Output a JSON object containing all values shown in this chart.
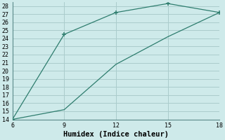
{
  "title": "",
  "xlabel": "Humidex (Indice chaleur)",
  "background_color": "#ceeaea",
  "grid_color": "#aacccc",
  "line_color": "#2e7d6e",
  "marker_color": "#2e7d6e",
  "x_series1": [
    6,
    9,
    12,
    15,
    18
  ],
  "y_series1": [
    14,
    24.5,
    27.2,
    28.3,
    27.2
  ],
  "x_series2": [
    6,
    9,
    12,
    15,
    18
  ],
  "y_series2": [
    14,
    15.2,
    20.8,
    24.2,
    27.2
  ],
  "xlim": [
    6,
    18
  ],
  "ylim": [
    14,
    28.5
  ],
  "xticks": [
    6,
    9,
    12,
    15,
    18
  ],
  "yticks": [
    14,
    15,
    16,
    17,
    18,
    19,
    20,
    21,
    22,
    23,
    24,
    25,
    26,
    27,
    28
  ],
  "tick_fontsize": 6,
  "xlabel_fontsize": 7.5
}
